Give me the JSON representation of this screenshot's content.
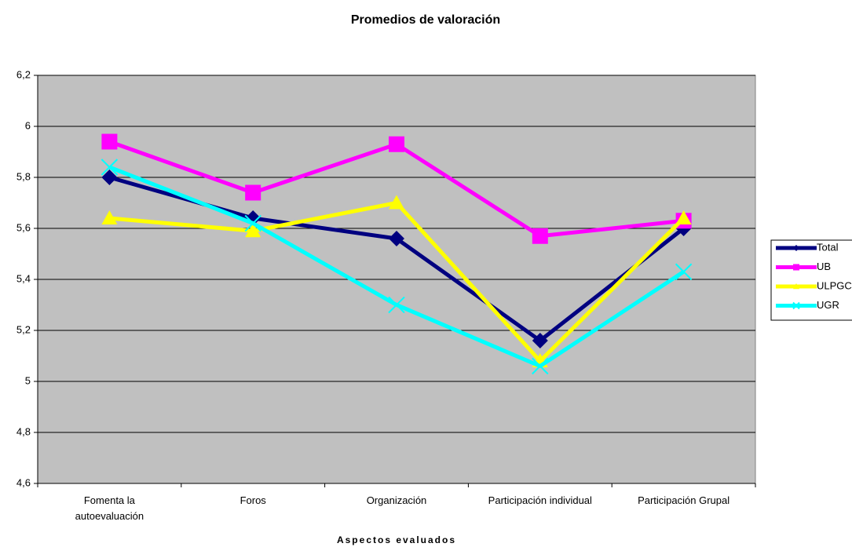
{
  "chart_data": {
    "type": "line",
    "title": "Promedios de valoración",
    "x_label": "Aspectos evaluados",
    "categories": [
      "Fomenta la autoevaluación",
      "Foros",
      "Organización",
      "Participación individual",
      "Participación Grupal"
    ],
    "series": [
      {
        "name": "Total",
        "color": "#000080",
        "marker": "diamond",
        "values": [
          5.8,
          5.64,
          5.56,
          5.16,
          5.6
        ]
      },
      {
        "name": "UB",
        "color": "#ff00ff",
        "marker": "square",
        "values": [
          5.94,
          5.74,
          5.93,
          5.57,
          5.63
        ]
      },
      {
        "name": "ULPGC",
        "color": "#ffff00",
        "marker": "triangle",
        "values": [
          5.64,
          5.59,
          5.7,
          5.08,
          5.64
        ]
      },
      {
        "name": "UGR",
        "color": "#00ffff",
        "marker": "x",
        "values": [
          5.84,
          5.62,
          5.3,
          5.06,
          5.43
        ]
      }
    ],
    "ylim": [
      4.6,
      6.2
    ],
    "yticks": [
      {
        "value": 4.6,
        "label": "4,6"
      },
      {
        "value": 4.8,
        "label": "4,8"
      },
      5,
      {
        "value": 5.2,
        "label": "5,2"
      },
      {
        "value": 5.4,
        "label": "5,4"
      },
      {
        "value": 5.6,
        "label": "5,6"
      },
      {
        "value": 5.8,
        "label": "5,8"
      },
      6,
      {
        "value": 6.2,
        "label": "6,2"
      }
    ],
    "grid": true,
    "legend": "right"
  }
}
